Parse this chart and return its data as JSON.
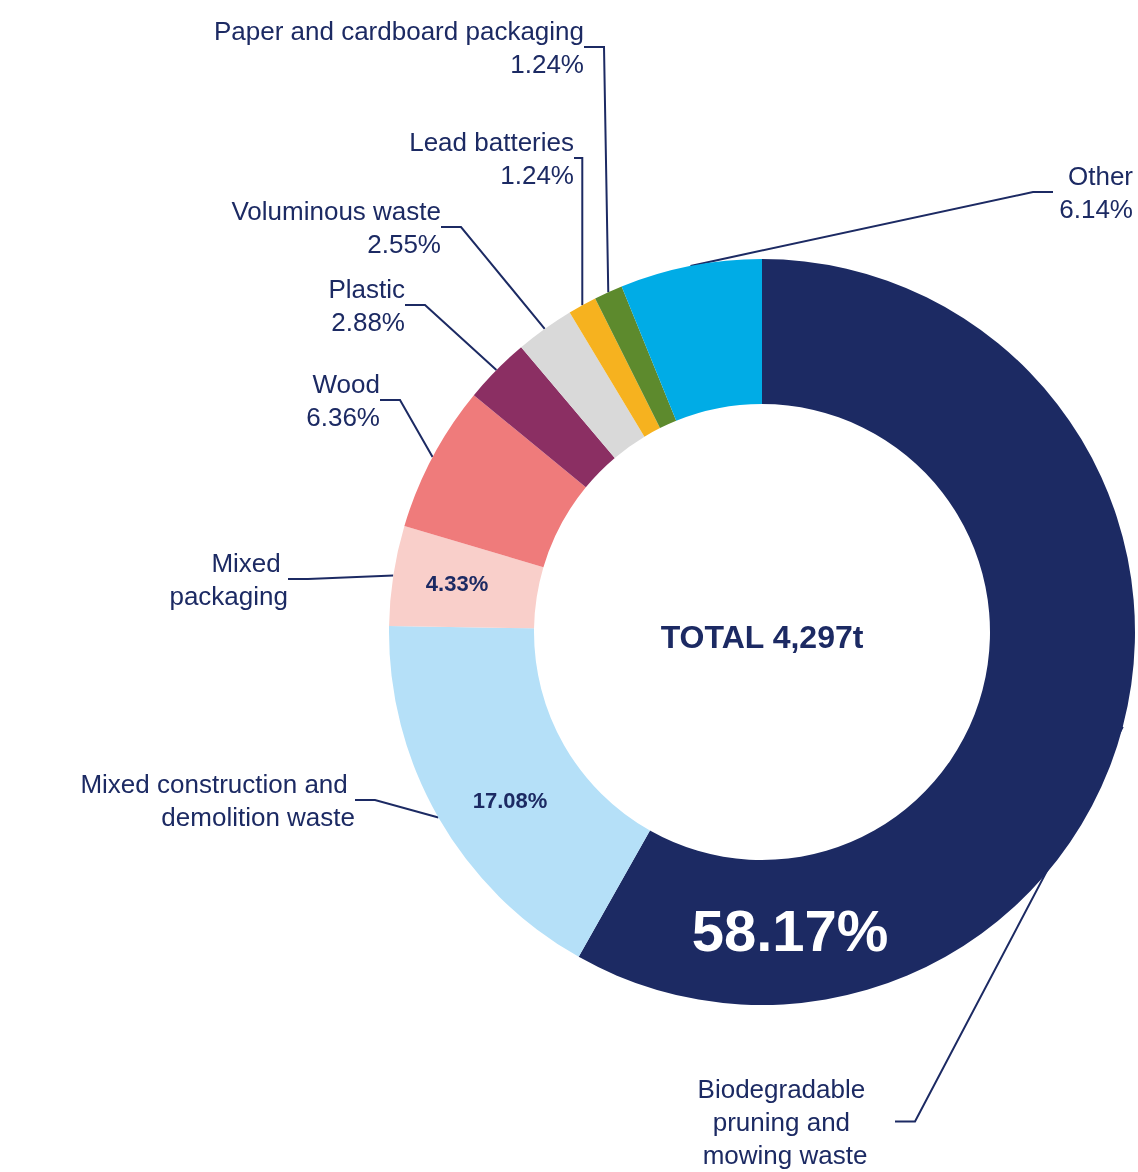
{
  "chart_data": {
    "type": "donut",
    "categories": [
      "Biodegradable pruning and mowing waste",
      "Mixed construction and demolition waste",
      "Mixed packaging",
      "Wood",
      "Plastic",
      "Voluminous waste",
      "Lead batteries",
      "Paper and cardboard packaging",
      "Other"
    ],
    "values": [
      58.17,
      17.08,
      4.33,
      6.36,
      2.88,
      2.55,
      1.24,
      1.24,
      6.14
    ],
    "value_labels": [
      "58.17%",
      "17.08%",
      "4.33%",
      "6.36%",
      "2.88%",
      "2.55%",
      "1.24%",
      "1.24%",
      "6.14%"
    ],
    "colors": [
      "#1c2a63",
      "#b5e0f8",
      "#f9cfca",
      "#ef7b7b",
      "#8b2f63",
      "#d9d9d9",
      "#f6b21f",
      "#5d8a2d",
      "#00ace6"
    ],
    "annotations": [
      "TOTAL 4,297t"
    ],
    "legend": false
  }
}
